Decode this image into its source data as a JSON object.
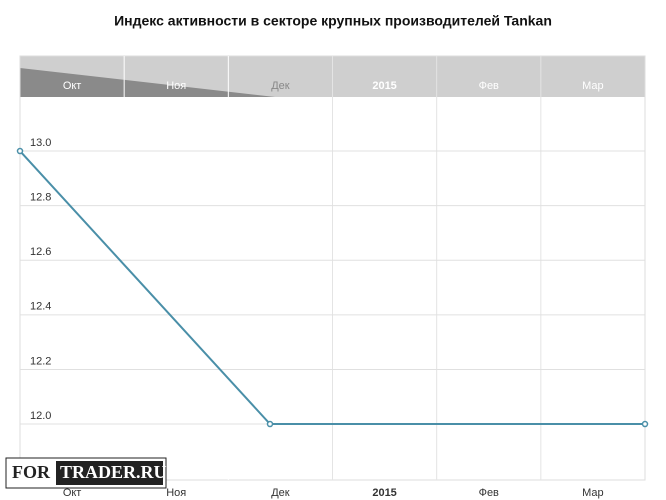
{
  "chart_data": {
    "type": "line",
    "title": "Индекс активности в секторе крупных производителей Tankan",
    "categories": [
      "Окт",
      "Ноя",
      "Дек",
      "2015",
      "Фев",
      "Мар"
    ],
    "x": [
      "Окт",
      "Дек",
      "Мар"
    ],
    "series": [
      {
        "color": "#4a8fa8",
        "values": [
          13.0,
          12.0,
          12.0
        ]
      }
    ],
    "ylim": [
      11.795,
      13.198
    ],
    "yticks": [
      {
        "value": 12,
        "label": "12.0"
      },
      12.2,
      12.4,
      12.6,
      12.8,
      {
        "value": 13,
        "label": "13.0"
      }
    ],
    "grid": true,
    "watermark": [
      "FOR",
      "TRADER.RU"
    ]
  }
}
